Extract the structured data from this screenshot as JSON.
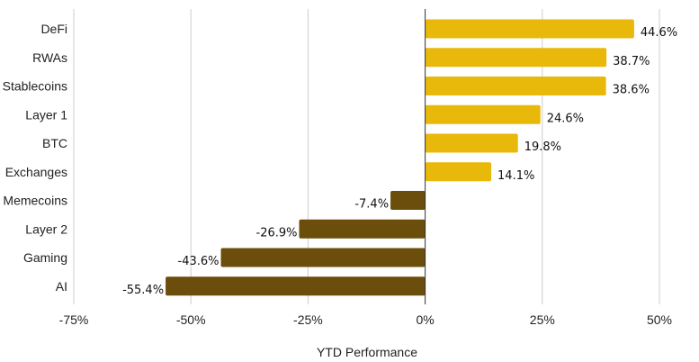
{
  "chart_data": {
    "type": "bar",
    "orientation": "horizontal",
    "categories": [
      "DeFi",
      "RWAs",
      "Stablecoins",
      "Layer 1",
      "BTC",
      "Exchanges",
      "Memecoins",
      "Layer 2",
      "Gaming",
      "AI"
    ],
    "values": [
      44.6,
      38.7,
      38.6,
      24.6,
      19.8,
      14.1,
      -7.4,
      -26.9,
      -43.6,
      -55.4
    ],
    "value_labels": [
      "44.6%",
      "38.7%",
      "38.6%",
      "24.6%",
      "19.8%",
      "14.1%",
      "-7.4%",
      "-26.9%",
      "-43.6%",
      "-55.4%"
    ],
    "xlabel": "YTD Performance",
    "ylabel": "",
    "xlim": [
      -75,
      50
    ],
    "xticks": [
      -75,
      -50,
      -25,
      0,
      25,
      50
    ],
    "xtick_labels": [
      "-75%",
      "-50%",
      "-25%",
      "0%",
      "25%",
      "50%"
    ],
    "grid": "vertical",
    "legend": "none",
    "colors": {
      "positive": "#E8B80A",
      "negative": "#6B4D0C",
      "grid": "#CCCCCC",
      "zero_line": "#333333"
    }
  }
}
